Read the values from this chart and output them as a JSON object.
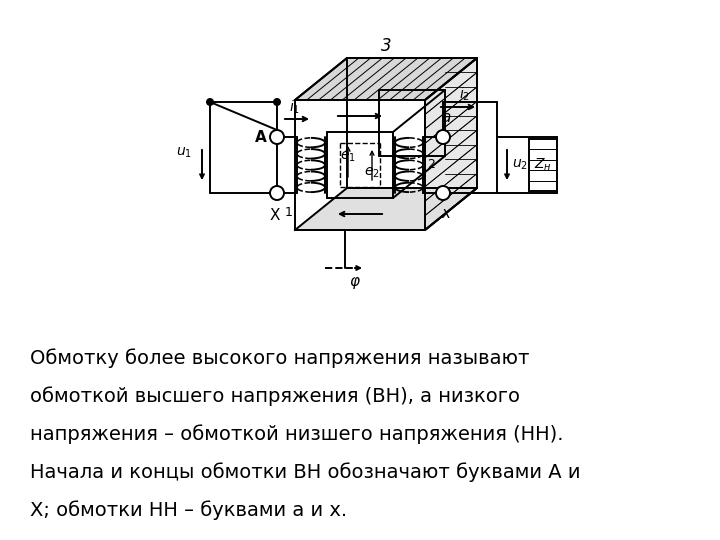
{
  "background_color": "#ffffff",
  "text_lines": [
    "Обмотку более высокого напряжения называют",
    "обмоткой высшего напряжения (ВН), а низкого",
    "напряжения – обмоткой низшего напряжения (НН).",
    "Начала и концы обмотки ВН обозначают буквами А и",
    "Х; обмотки НН – буквами а и х."
  ],
  "text_fontsize": 14
}
